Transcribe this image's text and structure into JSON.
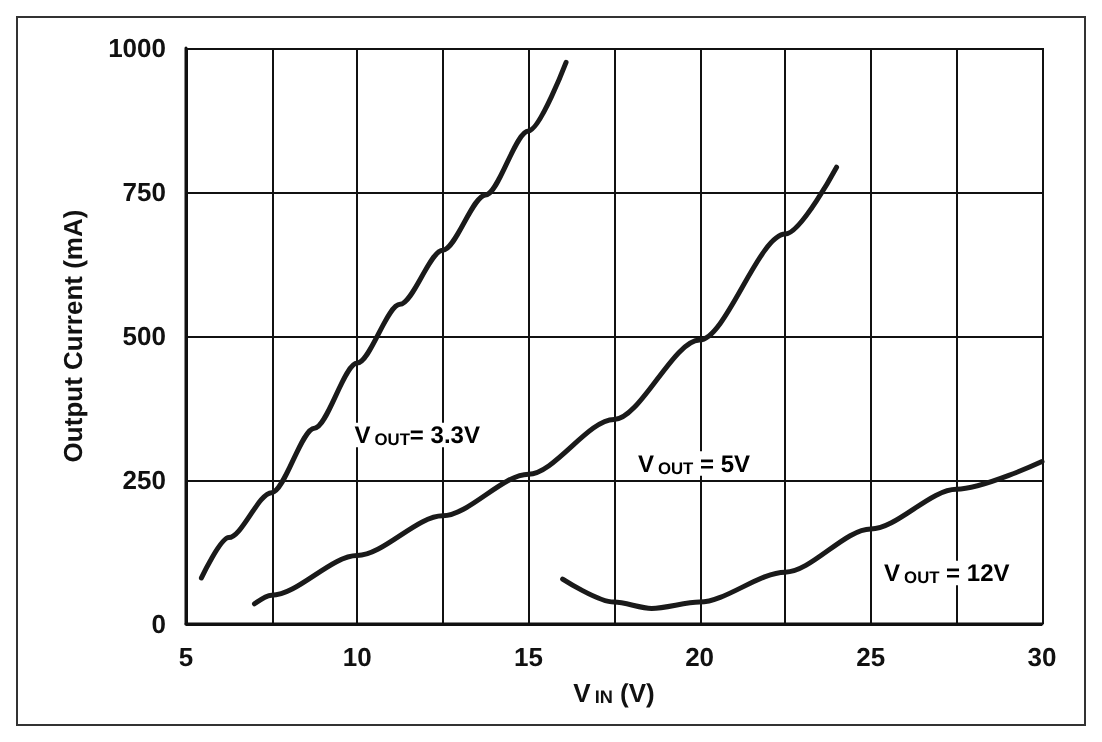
{
  "chart_data": {
    "type": "line",
    "xlabel": "V$_{IN}$ (V)",
    "ylabel": "Output Current (mA)",
    "xlim": [
      5,
      30
    ],
    "xticks": [
      5,
      {
        "value": 7.5,
        "label": null
      },
      10,
      {
        "value": 12.5,
        "label": null
      },
      15,
      {
        "value": 17.5,
        "label": null
      },
      20,
      {
        "value": 22.5,
        "label": null
      },
      25,
      {
        "value": 27.5,
        "label": null
      },
      30
    ],
    "ylim": [
      0,
      1000
    ],
    "yticks": [
      0,
      250,
      500,
      750,
      1000
    ],
    "grid": true,
    "marker": "none",
    "line_style": "solid",
    "series": [
      {
        "name": "V$_{OUT}$= 3.3V",
        "color": "#1a1a1a",
        "x": [
          5.45,
          6.25,
          7.5,
          8.75,
          10,
          11.25,
          12.5,
          13.75,
          15,
          16.1
        ],
        "values": [
          80,
          150,
          228,
          340,
          453,
          555,
          649,
          745,
          856,
          975
        ]
      },
      {
        "name": "V$_{OUT}$ = 5V",
        "color": "#1a1a1a",
        "x": [
          7,
          7.5,
          10,
          12.5,
          15,
          17.5,
          20,
          22.5,
          24
        ],
        "values": [
          35,
          50,
          119,
          188,
          260,
          355,
          493,
          677,
          793
        ]
      },
      {
        "name": "V$_{OUT}$ = 12V",
        "color": "#1a1a1a",
        "x": [
          16,
          17.5,
          18.6,
          20,
          22.5,
          25,
          27.5,
          30
        ],
        "values": [
          78,
          38,
          27,
          38,
          90,
          165,
          234,
          282
        ]
      }
    ]
  }
}
